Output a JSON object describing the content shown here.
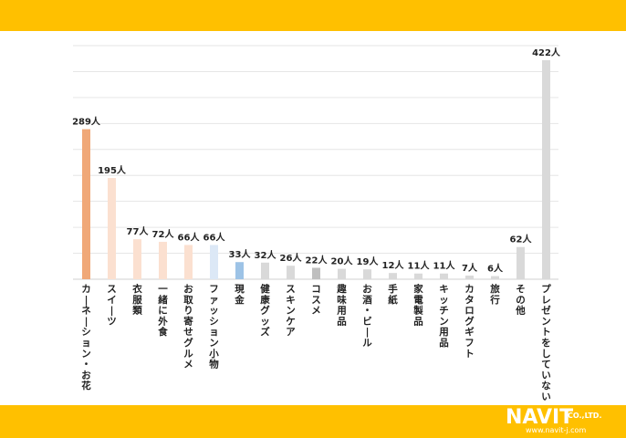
{
  "chart_data": {
    "type": "bar",
    "title": "",
    "xlabel": "",
    "ylabel": "",
    "ylim": [
      0,
      450
    ],
    "grid": true,
    "categories": [
      "カーネーション・お花",
      "スイーツ",
      "衣服類",
      "一緒に外食",
      "お取り寄せグルメ",
      "ファッション小物",
      "現金",
      "健康グッズ",
      "スキンケア",
      "コスメ",
      "趣味用品",
      "お酒・ビール",
      "手紙",
      "家電製品",
      "キッチン用品",
      "カタログギフト",
      "旅行",
      "その他",
      "プレゼントをしていない"
    ],
    "values": [
      289,
      195,
      77,
      72,
      66,
      66,
      33,
      32,
      26,
      22,
      20,
      19,
      12,
      11,
      11,
      7,
      6,
      62,
      422
    ],
    "value_labels": [
      "289人",
      "195人",
      "77人",
      "72人",
      "66人",
      "66人",
      "33人",
      "32人",
      "26人",
      "22人",
      "20人",
      "19人",
      "12人",
      "11人",
      "11人",
      "7人",
      "6人",
      "62人",
      "422人"
    ],
    "colors": [
      "#F0A878",
      "#FBE0D0",
      "#FBE0D0",
      "#FBE0D0",
      "#FBE0D0",
      "#DCE8F6",
      "#9DC3E6",
      "#D9D9D9",
      "#D9D9D9",
      "#BFBFBF",
      "#D9D9D9",
      "#D9D9D9",
      "#D9D9D9",
      "#D9D9D9",
      "#D9D9D9",
      "#D9D9D9",
      "#D9D9D9",
      "#D9D9D9",
      "#D9D9D9"
    ]
  },
  "logo": {
    "name": "NAVIT",
    "company_suffix": "CO.,LTD.",
    "url": "www.navit-j.com"
  }
}
